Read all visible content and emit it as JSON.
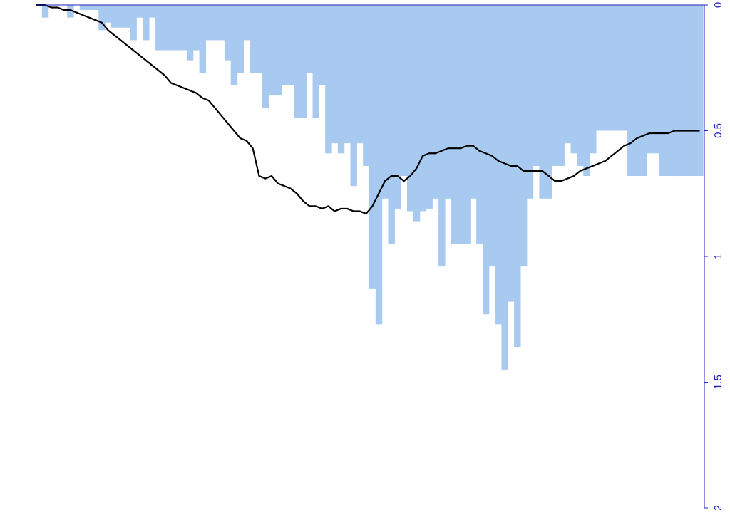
{
  "chart_data": {
    "type": "bar",
    "title": "",
    "xlabel": "",
    "ylabel": "",
    "y_axis_position": "right",
    "y_inverted": true,
    "ylim": [
      0,
      2
    ],
    "yticks": [
      0,
      0.5,
      1,
      1.5,
      2
    ],
    "ytick_labels": [
      "0",
      "0.5",
      "1",
      "1.5",
      "2"
    ],
    "grid": false,
    "legend": "none",
    "colors": {
      "bars": "#a8caf0",
      "line": "#000000",
      "axis": "#2222bb"
    },
    "x": [
      1,
      2,
      3,
      4,
      5,
      6,
      7,
      8,
      9,
      10,
      11,
      12,
      13,
      14,
      15,
      16,
      17,
      18,
      19,
      20,
      21,
      22,
      23,
      24,
      25,
      26,
      27,
      28,
      29,
      30,
      31,
      32,
      33,
      34,
      35,
      36,
      37,
      38,
      39,
      40,
      41,
      42,
      43,
      44,
      45,
      46,
      47,
      48,
      49,
      50,
      51,
      52,
      53,
      54,
      55,
      56,
      57,
      58,
      59,
      60,
      61,
      62,
      63,
      64,
      65,
      66,
      67,
      68,
      69,
      70,
      71,
      72,
      73,
      74,
      75,
      76,
      77,
      78,
      79,
      80,
      81,
      82,
      83,
      84,
      85,
      86,
      87,
      88,
      89,
      90,
      91,
      92,
      93,
      94,
      95,
      96,
      97,
      98,
      99,
      100,
      101,
      102,
      103,
      104,
      105,
      106
    ],
    "series": [
      {
        "type": "bar",
        "values": [
          0,
          0.05,
          0,
          0,
          0,
          0.05,
          0,
          0.02,
          0.02,
          0.02,
          0.1,
          0.07,
          0.09,
          0.09,
          0.09,
          0.14,
          0.05,
          0.14,
          0.05,
          0.18,
          0.18,
          0.18,
          0.18,
          0.18,
          0.22,
          0.18,
          0.27,
          0.14,
          0.14,
          0.14,
          0.22,
          0.32,
          0.27,
          0.14,
          0.27,
          0.27,
          0.41,
          0.36,
          0.36,
          0.32,
          0.32,
          0.45,
          0.45,
          0.27,
          0.45,
          0.32,
          0.59,
          0.55,
          0.59,
          0.55,
          0.72,
          0.55,
          0.64,
          1.13,
          1.27,
          0.77,
          0.95,
          0.81,
          0.68,
          0.82,
          0.86,
          0.82,
          0.81,
          0.77,
          1.04,
          0.77,
          0.95,
          0.95,
          0.95,
          0.77,
          0.95,
          1.23,
          1.04,
          1.27,
          1.45,
          1.18,
          1.36,
          1.04,
          0.77,
          0.64,
          0.77,
          0.77,
          0.64,
          0.64,
          0.55,
          0.59,
          0.64,
          0.68,
          0.59,
          0.5,
          0.5,
          0.5,
          0.5,
          0.5,
          0.68,
          0.68,
          0.68,
          0.59,
          0.59,
          0.68,
          0.68,
          0.68,
          0.68,
          0.68,
          0.68,
          0.68
        ]
      },
      {
        "type": "line",
        "values": [
          0,
          0,
          0.01,
          0.01,
          0.02,
          0.02,
          0.03,
          0.04,
          0.05,
          0.06,
          0.07,
          0.1,
          0.12,
          0.14,
          0.16,
          0.18,
          0.2,
          0.22,
          0.24,
          0.26,
          0.28,
          0.31,
          0.32,
          0.33,
          0.34,
          0.35,
          0.37,
          0.38,
          0.41,
          0.44,
          0.47,
          0.5,
          0.53,
          0.54,
          0.57,
          0.68,
          0.69,
          0.68,
          0.71,
          0.72,
          0.73,
          0.75,
          0.78,
          0.8,
          0.8,
          0.81,
          0.8,
          0.82,
          0.81,
          0.81,
          0.82,
          0.82,
          0.83,
          0.8,
          0.75,
          0.7,
          0.68,
          0.68,
          0.7,
          0.68,
          0.65,
          0.6,
          0.59,
          0.59,
          0.58,
          0.57,
          0.57,
          0.57,
          0.56,
          0.56,
          0.58,
          0.59,
          0.6,
          0.62,
          0.63,
          0.64,
          0.64,
          0.66,
          0.66,
          0.66,
          0.66,
          0.68,
          0.7,
          0.7,
          0.69,
          0.68,
          0.66,
          0.65,
          0.64,
          0.63,
          0.62,
          0.6,
          0.58,
          0.56,
          0.55,
          0.53,
          0.52,
          0.51,
          0.51,
          0.51,
          0.51,
          0.5,
          0.5,
          0.5,
          0.5,
          0.5
        ]
      }
    ]
  }
}
